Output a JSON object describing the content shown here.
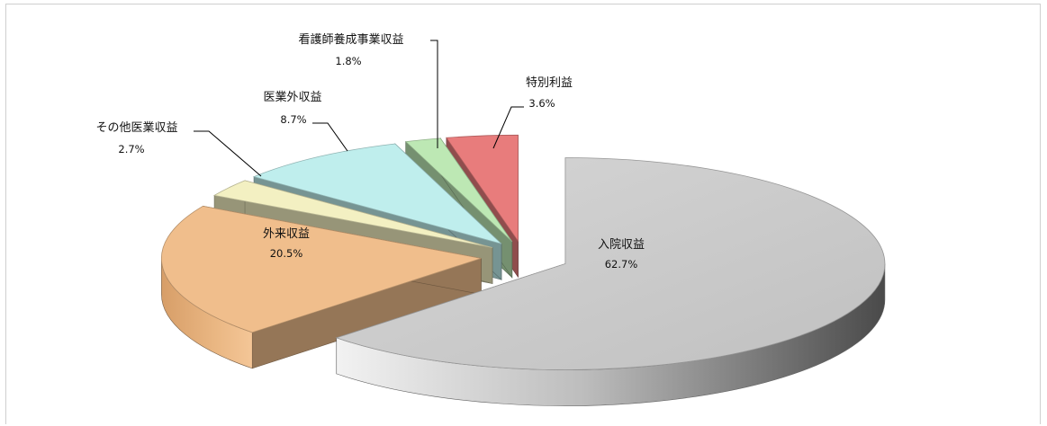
{
  "chart_data": {
    "type": "pie",
    "style": "3d-exploded",
    "title": "",
    "slices": [
      {
        "label": "入院収益",
        "value": 62.7,
        "value_label": "62.7%",
        "color": "#c8c8c8"
      },
      {
        "label": "外来収益",
        "value": 20.5,
        "value_label": "20.5%",
        "color": "#f0be8c"
      },
      {
        "label": "その他医業収益",
        "value": 2.7,
        "value_label": "2.7%",
        "color": "#f3f0c2"
      },
      {
        "label": "医業外収益",
        "value": 8.7,
        "value_label": "8.7%",
        "color": "#bfeeed"
      },
      {
        "label": "看護師養成事業収益",
        "value": 1.8,
        "value_label": "1.8%",
        "color": "#bde8b4"
      },
      {
        "label": "特別利益",
        "value": 3.6,
        "value_label": "3.6%",
        "color": "#e87c7c"
      }
    ]
  }
}
